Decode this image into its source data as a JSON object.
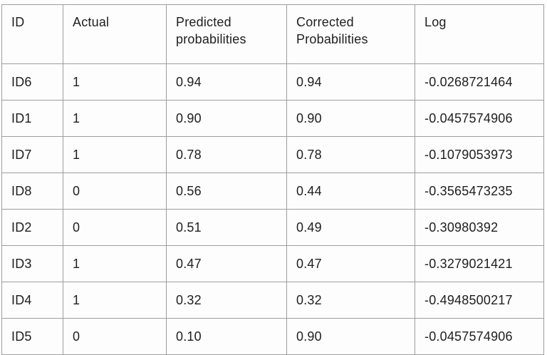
{
  "colors": {
    "background": "#fdfdfd",
    "border": "#9e9e9e",
    "text": "#1e1e20"
  },
  "chart_data": {
    "type": "table",
    "title": "",
    "columns": [
      "ID",
      "Actual",
      "Predicted probabilities",
      "Corrected Probabilities",
      "Log"
    ],
    "rows": [
      [
        "ID6",
        "1",
        "0.94",
        "0.94",
        "-0.0268721464"
      ],
      [
        "ID1",
        "1",
        "0.90",
        "0.90",
        "-0.0457574906"
      ],
      [
        "ID7",
        "1",
        "0.78",
        "0.78",
        "-0.1079053973"
      ],
      [
        "ID8",
        "0",
        "0.56",
        "0.44",
        "-0.3565473235"
      ],
      [
        "ID2",
        "0",
        "0.51",
        "0.49",
        "-0.30980392"
      ],
      [
        "ID3",
        "1",
        "0.47",
        "0.47",
        "-0.3279021421"
      ],
      [
        "ID4",
        "1",
        "0.32",
        "0.32",
        "-0.4948500217"
      ],
      [
        "ID5",
        "0",
        "0.10",
        "0.90",
        "-0.0457574906"
      ]
    ]
  }
}
